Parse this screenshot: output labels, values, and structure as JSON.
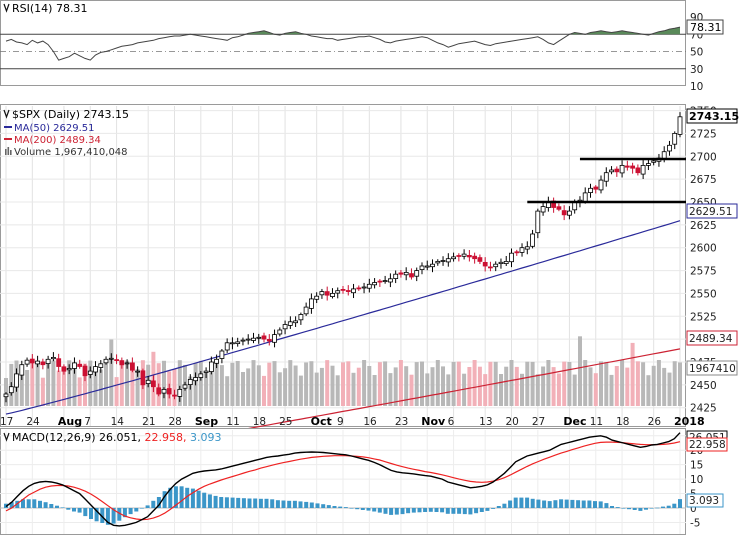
{
  "colors": {
    "up": "#000000",
    "down": "#cc1133",
    "ma50": "#2a2a9a",
    "ma200": "#cc2233",
    "rsi_fill": "#5a8a5a",
    "volume_up": "#b8b8b8",
    "volume_down": "#f2b0b8",
    "macd_line": "#000000",
    "signal_line": "#ee2222",
    "histogram": "#3b96c8"
  },
  "chart_data": [
    {
      "type": "line",
      "panel": "rsi",
      "title": "RSI(14) 78.31",
      "last_value_label": "78.31",
      "ylim": [
        10,
        90
      ],
      "y_ticks": [
        "90",
        "70",
        "50",
        "30",
        "10"
      ],
      "reference_lines": [
        70,
        50,
        30
      ],
      "values": [
        62,
        64,
        61,
        60,
        58,
        63,
        60,
        62,
        58,
        50,
        40,
        42,
        44,
        48,
        45,
        42,
        40,
        46,
        49,
        50,
        52,
        54,
        56,
        57,
        58,
        60,
        61,
        62,
        63,
        65,
        66,
        67,
        68,
        68,
        69,
        70,
        69,
        68,
        67,
        66,
        65,
        64,
        63,
        66,
        67,
        69,
        71,
        72,
        73,
        74,
        72,
        70,
        69,
        71,
        72,
        73,
        71,
        70,
        68,
        67,
        66,
        65,
        65,
        63,
        64,
        65,
        66,
        67,
        67,
        68,
        66,
        64,
        61,
        60,
        62,
        63,
        64,
        65,
        66,
        67,
        66,
        63,
        60,
        58,
        55,
        57,
        59,
        60,
        61,
        62,
        60,
        58,
        57,
        59,
        60,
        61,
        62,
        63,
        64,
        65,
        66,
        67,
        64,
        60,
        58,
        62,
        66,
        70,
        72,
        71,
        70,
        72,
        73,
        74,
        73,
        72,
        73,
        74,
        73,
        72,
        71,
        70,
        69,
        71,
        73,
        74,
        76,
        77,
        78.31
      ]
    },
    {
      "type": "candlestick",
      "panel": "price",
      "title": "$SPX (Daily) 2743.15",
      "last_close_label": "2743.15",
      "ylim": [
        2405,
        2755
      ],
      "y_ticks": [
        "2750",
        "2725",
        "2700",
        "2675",
        "2650",
        "2625",
        "2600",
        "2575",
        "2550",
        "2525",
        "2500",
        "2475",
        "2450",
        "2425"
      ],
      "x_tick_labels": [
        "17",
        "24",
        "Aug",
        "7",
        "14",
        "21",
        "28",
        "Sep",
        "11",
        "18",
        "25",
        "Oct",
        "9",
        "16",
        "23",
        "Nov",
        "6",
        "13",
        "20",
        "27",
        "Dec",
        "11",
        "18",
        "26",
        "2018"
      ],
      "horizontal_levels": [
        2697,
        2650
      ],
      "close": [
        2440,
        2448,
        2462,
        2472,
        2477,
        2474,
        2476,
        2472,
        2478,
        2480,
        2470,
        2465,
        2468,
        2474,
        2470,
        2460,
        2465,
        2470,
        2473,
        2478,
        2479,
        2477,
        2472,
        2474,
        2466,
        2465,
        2450,
        2455,
        2448,
        2440,
        2445,
        2440,
        2438,
        2445,
        2450,
        2456,
        2458,
        2462,
        2465,
        2475,
        2478,
        2487,
        2496,
        2496,
        2497,
        2499,
        2500,
        2501,
        2502,
        2500,
        2498,
        2505,
        2510,
        2516,
        2519,
        2520,
        2527,
        2535,
        2544,
        2547,
        2552,
        2548,
        2550,
        2553,
        2554,
        2552,
        2555,
        2555,
        2557,
        2560,
        2562,
        2563,
        2564,
        2566,
        2571,
        2571,
        2573,
        2568,
        2575,
        2580,
        2580,
        2582,
        2585,
        2586,
        2588,
        2590,
        2591,
        2593,
        2590,
        2588,
        2585,
        2580,
        2578,
        2582,
        2584,
        2585,
        2594,
        2595,
        2600,
        2601,
        2615,
        2640,
        2645,
        2650,
        2644,
        2642,
        2636,
        2640,
        2650,
        2652,
        2660,
        2665,
        2664,
        2674,
        2682,
        2685,
        2683,
        2690,
        2688,
        2687,
        2682,
        2690,
        2692,
        2695,
        2698,
        2705,
        2712,
        2725,
        2743.15
      ],
      "series": [
        {
          "name": "MA(50) 2629.51",
          "last_value_label": "2629.51",
          "start": 2418,
          "end": 2629.51
        },
        {
          "name": "MA(200) 2489.34",
          "last_value_label": "2489.34",
          "start": 2357,
          "end": 2489.34
        }
      ],
      "volume_legend": "Volume 1,967,410,048",
      "volume_last_label": "1967410"
    },
    {
      "type": "line",
      "panel": "macd",
      "title": "MACD(12,26,9) 26.051, 22.958, 3.093",
      "title_parts": [
        "MACD(12,26,9) 26.051,",
        "22.958,",
        "3.093"
      ],
      "ylim": [
        -9,
        27
      ],
      "y_ticks": [
        "25",
        "20",
        "15",
        "10",
        "5",
        "0",
        "-5"
      ],
      "value_labels": [
        "26.051",
        "22.958",
        "3.093"
      ],
      "series": [
        {
          "name": "MACD",
          "values": [
            0.5,
            2.0,
            4.0,
            6.0,
            7.5,
            8.5,
            9.0,
            9.2,
            9.0,
            8.6,
            8.0,
            7.0,
            6.0,
            5.0,
            3.0,
            1.0,
            -1.0,
            -3.0,
            -5.0,
            -6.0,
            -6.2,
            -6.0,
            -5.5,
            -5.0,
            -4.0,
            -3.0,
            -1.0,
            1.0,
            4.0,
            6.5,
            8.5,
            10.0,
            11.0,
            12.0,
            12.5,
            12.8,
            13.0,
            13.2,
            13.5,
            14.0,
            14.5,
            15.0,
            15.5,
            16.0,
            16.5,
            17.0,
            17.5,
            17.8,
            18.0,
            18.3,
            18.6,
            19.0,
            19.2,
            19.3,
            19.4,
            19.3,
            19.2,
            19.0,
            18.8,
            18.6,
            18.4,
            18.0,
            17.5,
            17.0,
            16.5,
            15.8,
            15.0,
            14.0,
            13.0,
            12.5,
            12.2,
            12.0,
            11.8,
            11.5,
            11.2,
            11.0,
            10.5,
            10.0,
            9.0,
            8.5,
            8.0,
            7.5,
            7.0,
            7.2,
            7.5,
            8.0,
            9.0,
            10.5,
            12.0,
            14.0,
            16.0,
            17.0,
            18.0,
            18.5,
            19.0,
            19.5,
            20.0,
            21.0,
            22.0,
            22.5,
            23.0,
            23.5,
            24.0,
            24.5,
            24.8,
            25.0,
            24.5,
            23.5,
            23.0,
            22.5,
            22.0,
            21.5,
            21.0,
            21.3,
            21.8,
            22.0,
            22.5,
            23.0,
            24.0,
            26.051
          ]
        },
        {
          "name": "Signal",
          "values": [
            -1.0,
            0.0,
            1.5,
            3.0,
            4.5,
            5.5,
            6.5,
            7.2,
            7.6,
            7.8,
            7.8,
            7.6,
            7.2,
            6.6,
            5.8,
            4.8,
            3.6,
            2.2,
            0.8,
            -0.6,
            -1.8,
            -2.8,
            -3.4,
            -3.8,
            -4.0,
            -3.9,
            -3.5,
            -2.8,
            -1.8,
            -0.5,
            1.0,
            2.5,
            4.0,
            5.3,
            6.5,
            7.5,
            8.3,
            9.0,
            9.7,
            10.3,
            10.9,
            11.5,
            12.1,
            12.7,
            13.2,
            13.8,
            14.3,
            14.8,
            15.3,
            15.7,
            16.1,
            16.5,
            16.9,
            17.2,
            17.5,
            17.7,
            17.9,
            18.0,
            18.1,
            18.1,
            18.1,
            18.0,
            17.9,
            17.7,
            17.4,
            17.0,
            16.6,
            16.0,
            15.4,
            14.8,
            14.3,
            13.8,
            13.4,
            13.0,
            12.6,
            12.3,
            11.9,
            11.5,
            11.0,
            10.5,
            10.0,
            9.6,
            9.2,
            9.0,
            8.9,
            9.0,
            9.3,
            9.8,
            10.5,
            11.4,
            12.4,
            13.4,
            14.4,
            15.3,
            16.1,
            16.9,
            17.6,
            18.3,
            19.0,
            19.6,
            20.2,
            20.8,
            21.4,
            21.9,
            22.4,
            22.7,
            22.8,
            22.8,
            22.7,
            22.6,
            22.4,
            22.2,
            22.0,
            21.9,
            21.9,
            21.9,
            22.0,
            22.2,
            22.5,
            22.958
          ]
        }
      ]
    }
  ]
}
